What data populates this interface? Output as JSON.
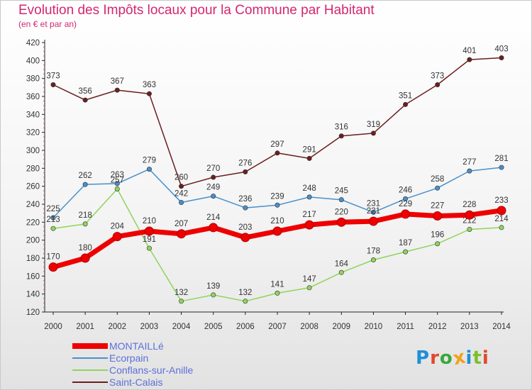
{
  "header": {
    "title": "Evolution des Impôts locaux pour la Commune par Habitant",
    "subtitle": "(en € et par an)"
  },
  "logo": {
    "text": "Proxiti",
    "letters": [
      "P",
      "r",
      "o",
      "x",
      "i",
      "t",
      "i"
    ],
    "colors": [
      "#1f8fd6",
      "#e3482e",
      "#3aa83a",
      "#f2a11b",
      "#1f8fd6",
      "#7cbf2c",
      "#e3482e"
    ]
  },
  "chart_data": {
    "type": "line",
    "title": "Evolution des Impôts locaux pour la Commune par Habitant",
    "subtitle": "(en € et par an)",
    "xlabel": "",
    "ylabel": "",
    "x": [
      2000,
      2001,
      2002,
      2003,
      2004,
      2005,
      2006,
      2007,
      2008,
      2009,
      2010,
      2011,
      2012,
      2013,
      2014
    ],
    "ylim": [
      120,
      420
    ],
    "yticks": [
      120,
      140,
      160,
      180,
      200,
      220,
      240,
      260,
      280,
      300,
      320,
      340,
      360,
      380,
      400,
      420
    ],
    "grid": false,
    "legend_position": "bottom-left",
    "series": [
      {
        "name": "Saint-Calais",
        "color": "#6b1f1f",
        "values": [
          373,
          356,
          367,
          363,
          260,
          270,
          276,
          297,
          291,
          316,
          319,
          351,
          373,
          401,
          403
        ]
      },
      {
        "name": "Ecorpain",
        "color": "#4a8fc9",
        "values": [
          225,
          262,
          263,
          279,
          242,
          249,
          236,
          239,
          248,
          245,
          231,
          246,
          258,
          277,
          281
        ]
      },
      {
        "name": "Conflans-sur-Anille",
        "color": "#8fd45b",
        "values": [
          213,
          218,
          257,
          191,
          132,
          139,
          132,
          141,
          147,
          164,
          178,
          187,
          196,
          212,
          214
        ]
      },
      {
        "name": "MONTAILLé",
        "color": "#ee0000",
        "values": [
          170,
          180,
          204,
          210,
          207,
          214,
          203,
          210,
          217,
          220,
          221,
          229,
          227,
          228,
          233
        ]
      }
    ],
    "legend": [
      "MONTAILLé",
      "Ecorpain",
      "Conflans-sur-Anille",
      "Saint-Calais"
    ]
  }
}
